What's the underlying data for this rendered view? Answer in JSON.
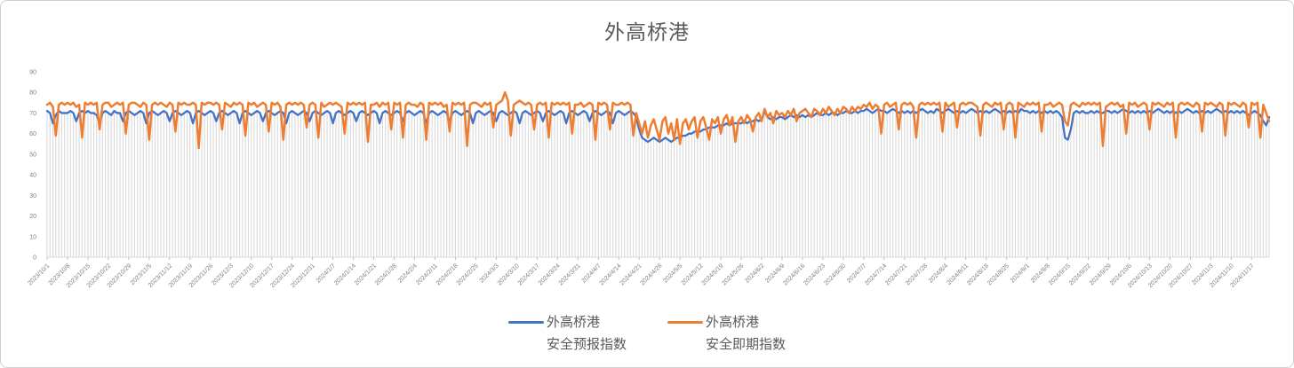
{
  "window": {
    "border_color": "#d0cece",
    "background": "#ffffff"
  },
  "chart": {
    "title": "外高桥港",
    "title_color": "#595959",
    "colors": {
      "forecast_line": "#4472C4",
      "spot_line": "#ED7D31",
      "dropline": "#D9D9D9",
      "axis_line": "#D9D9D9",
      "tick_mark": "#BFBFBF",
      "tick_label": "#7F7F7F"
    },
    "legend": {
      "items": [
        {
          "line1": "外高桥港",
          "line2": "安全预报指数",
          "color": "#4472C4"
        },
        {
          "line1": "外高桥港",
          "line2": "安全即期指数",
          "color": "#ED7D31"
        }
      ]
    }
  },
  "chart_data": {
    "type": "line",
    "title": "外高桥港",
    "xlabel": "",
    "ylabel": "",
    "ylim": [
      0,
      90
    ],
    "y_ticks": [
      0,
      10,
      20,
      30,
      40,
      50,
      60,
      70,
      80,
      90
    ],
    "x_start": "2023/10/1",
    "x_interval_days": 1,
    "tick_every_days": 7,
    "grid": "vertical-droplines",
    "legend_position": "bottom",
    "x_tick_labels": [
      "2023/10/1",
      "2023/10/8",
      "2023/10/15",
      "2023/10/22",
      "2023/10/29",
      "2023/11/5",
      "2023/11/12",
      "2023/11/19",
      "2023/11/26",
      "2023/12/3",
      "2023/12/10",
      "2023/12/17",
      "2023/12/24",
      "2023/12/31",
      "2024/1/7",
      "2024/1/14",
      "2024/1/21",
      "2024/1/28",
      "2024/2/4",
      "2024/2/11",
      "2024/2/18",
      "2024/2/25",
      "2024/3/3",
      "2024/3/10",
      "2024/3/17",
      "2024/3/24",
      "2024/3/31",
      "2024/4/7",
      "2024/4/14",
      "2024/4/21",
      "2024/4/28",
      "2024/5/5",
      "2024/5/12",
      "2024/5/19",
      "2024/5/26",
      "2024/6/2",
      "2024/6/9",
      "2024/6/16",
      "2024/6/23",
      "2024/6/30",
      "2024/7/7",
      "2024/7/14",
      "2024/7/21",
      "2024/7/28",
      "2024/8/4",
      "2024/8/11",
      "2024/8/18",
      "2024/8/25",
      "2024/9/1",
      "2024/9/8",
      "2024/9/15",
      "2024/9/22",
      "2024/9/29",
      "2024/10/6",
      "2024/10/13",
      "2024/10/20",
      "2024/10/27",
      "2024/11/3",
      "2024/11/10",
      "2024/11/17"
    ],
    "series": [
      {
        "name": "外高桥港 安全预报指数",
        "color": "#4472C4",
        "values": [
          71,
          70,
          65,
          69,
          71,
          70,
          70,
          70,
          71,
          70,
          66,
          70,
          71,
          70,
          71,
          70,
          70,
          69,
          65,
          70,
          71,
          70,
          69,
          71,
          70,
          70,
          66,
          70,
          71,
          70,
          69,
          70,
          71,
          70,
          65,
          70,
          71,
          70,
          69,
          70,
          71,
          70,
          66,
          70,
          71,
          70,
          69,
          70,
          71,
          70,
          65,
          70,
          71,
          70,
          69,
          70,
          71,
          70,
          66,
          70,
          71,
          70,
          69,
          70,
          71,
          70,
          65,
          70,
          71,
          70,
          69,
          70,
          71,
          70,
          66,
          70,
          71,
          70,
          69,
          70,
          71,
          70,
          65,
          70,
          71,
          70,
          69,
          70,
          71,
          70,
          66,
          70,
          71,
          70,
          69,
          70,
          71,
          70,
          65,
          70,
          71,
          70,
          69,
          70,
          71,
          70,
          66,
          70,
          71,
          70,
          69,
          70,
          71,
          70,
          65,
          70,
          71,
          70,
          69,
          70,
          71,
          70,
          66,
          70,
          71,
          70,
          69,
          70,
          71,
          70,
          65,
          70,
          71,
          70,
          69,
          70,
          71,
          70,
          66,
          70,
          71,
          70,
          69,
          70,
          71,
          70,
          65,
          70,
          71,
          70,
          69,
          70,
          71,
          70,
          66,
          70,
          71,
          70,
          69,
          70,
          71,
          70,
          65,
          70,
          71,
          70,
          69,
          70,
          71,
          70,
          66,
          70,
          71,
          70,
          69,
          70,
          71,
          70,
          65,
          70,
          71,
          70,
          69,
          70,
          71,
          70,
          66,
          70,
          71,
          70,
          69,
          70,
          71,
          70,
          65,
          70,
          71,
          70,
          69,
          70,
          71,
          70,
          68,
          62,
          58,
          57,
          56,
          57,
          58,
          57,
          56,
          57,
          58,
          57,
          56,
          57,
          58,
          58,
          59,
          59,
          60,
          60,
          61,
          61,
          61,
          62,
          62,
          63,
          63,
          63,
          64,
          64,
          64,
          65,
          64,
          65,
          65,
          65,
          65,
          66,
          65,
          66,
          66,
          67,
          66,
          67,
          71,
          68,
          67,
          68,
          67,
          68,
          68,
          67,
          68,
          69,
          68,
          69,
          68,
          69,
          68,
          69,
          68,
          69,
          70,
          69,
          69,
          70,
          69,
          70,
          70,
          69,
          70,
          70,
          71,
          70,
          70,
          71,
          70,
          71,
          71,
          72,
          71,
          70,
          71,
          72,
          71,
          71,
          70,
          71,
          72,
          71,
          70,
          71,
          70,
          71,
          70,
          71,
          70,
          71,
          72,
          71,
          70,
          71,
          70,
          72,
          71,
          70,
          71,
          72,
          71,
          70,
          71,
          70,
          71,
          70,
          71,
          72,
          71,
          70,
          71,
          70,
          71,
          70,
          71,
          72,
          71,
          70,
          71,
          70,
          71,
          70,
          71,
          70,
          72,
          71,
          71,
          70,
          71,
          70,
          71,
          70,
          71,
          70,
          71,
          70,
          71,
          70,
          68,
          58,
          57,
          62,
          70,
          71,
          70,
          71,
          70,
          70,
          71,
          70,
          71,
          70,
          70,
          71,
          71,
          70,
          71,
          70,
          71,
          72,
          71,
          70,
          71,
          70,
          71,
          70,
          71,
          70,
          71,
          70,
          71,
          72,
          71,
          70,
          71,
          70,
          71,
          70,
          71,
          70,
          71,
          72,
          71,
          70,
          71,
          70,
          71,
          70,
          71,
          70,
          71,
          72,
          71,
          70,
          71,
          70,
          71,
          70,
          71,
          70,
          71,
          70,
          69,
          70,
          71,
          70,
          69,
          66,
          64,
          68
        ]
      },
      {
        "name": "外高桥港 安全即期指数",
        "color": "#ED7D31",
        "values": [
          74,
          75,
          73,
          59,
          74,
          75,
          74,
          75,
          74,
          75,
          73,
          74,
          58,
          75,
          74,
          75,
          74,
          75,
          62,
          74,
          75,
          75,
          73,
          74,
          75,
          74,
          75,
          60,
          74,
          75,
          75,
          74,
          73,
          75,
          74,
          57,
          74,
          75,
          74,
          75,
          74,
          73,
          75,
          74,
          61,
          75,
          74,
          75,
          74,
          74,
          75,
          74,
          53,
          75,
          74,
          75,
          75,
          74,
          75,
          74,
          62,
          75,
          74,
          73,
          75,
          74,
          75,
          74,
          59,
          75,
          74,
          75,
          73,
          74,
          75,
          74,
          61,
          75,
          74,
          75,
          73,
          57,
          74,
          75,
          74,
          75,
          74,
          75,
          74,
          63,
          74,
          75,
          74,
          58,
          75,
          73,
          74,
          75,
          74,
          75,
          74,
          73,
          60,
          75,
          74,
          75,
          74,
          75,
          74,
          75,
          56,
          74,
          74,
          75,
          73,
          75,
          74,
          75,
          62,
          75,
          74,
          75,
          58,
          74,
          75,
          74,
          74,
          73,
          75,
          74,
          57,
          75,
          74,
          75,
          74,
          75,
          73,
          74,
          61,
          75,
          74,
          75,
          74,
          75,
          54,
          74,
          75,
          75,
          74,
          73,
          75,
          74,
          75,
          63,
          74,
          75,
          76,
          80,
          76,
          59,
          74,
          75,
          76,
          75,
          74,
          75,
          74,
          62,
          74,
          75,
          74,
          75,
          58,
          75,
          74,
          75,
          74,
          75,
          74,
          75,
          60,
          74,
          74,
          75,
          73,
          74,
          75,
          74,
          57,
          75,
          74,
          75,
          74,
          62,
          75,
          74,
          74,
          75,
          74,
          75,
          74,
          59,
          70,
          65,
          60,
          66,
          58,
          64,
          67,
          62,
          57,
          66,
          68,
          60,
          65,
          57,
          67,
          55,
          65,
          67,
          62,
          66,
          68,
          58,
          66,
          68,
          63,
          57,
          67,
          65,
          68,
          60,
          67,
          69,
          64,
          68,
          56,
          66,
          68,
          65,
          69,
          67,
          61,
          68,
          70,
          66,
          72,
          68,
          70,
          65,
          71,
          69,
          70,
          68,
          71,
          69,
          72,
          66,
          70,
          71,
          72,
          70,
          68,
          72,
          71,
          69,
          72,
          70,
          73,
          71,
          69,
          72,
          70,
          73,
          72,
          70,
          73,
          71,
          73,
          72,
          74,
          73,
          75,
          72,
          74,
          73,
          60,
          74,
          75,
          73,
          74,
          75,
          62,
          74,
          75,
          74,
          75,
          73,
          58,
          74,
          75,
          74,
          75,
          74,
          75,
          74,
          75,
          61,
          75,
          73,
          74,
          75,
          63,
          74,
          75,
          74,
          75,
          75,
          74,
          73,
          59,
          74,
          75,
          74,
          73,
          75,
          74,
          75,
          62,
          74,
          75,
          74,
          58,
          75,
          74,
          73,
          75,
          74,
          75,
          74,
          75,
          61,
          74,
          74,
          75,
          73,
          74,
          75,
          74,
          66,
          64,
          74,
          75,
          74,
          73,
          75,
          74,
          75,
          74,
          75,
          74,
          75,
          54,
          73,
          74,
          75,
          74,
          75,
          73,
          74,
          60,
          75,
          74,
          75,
          73,
          74,
          75,
          74,
          62,
          75,
          74,
          75,
          74,
          73,
          75,
          74,
          75,
          58,
          74,
          75,
          74,
          75,
          74,
          73,
          75,
          74,
          61,
          75,
          74,
          75,
          74,
          73,
          75,
          74,
          59,
          75,
          74,
          75,
          74,
          73,
          75,
          74,
          63,
          75,
          74,
          75,
          58,
          74,
          70,
          66
        ]
      }
    ]
  }
}
